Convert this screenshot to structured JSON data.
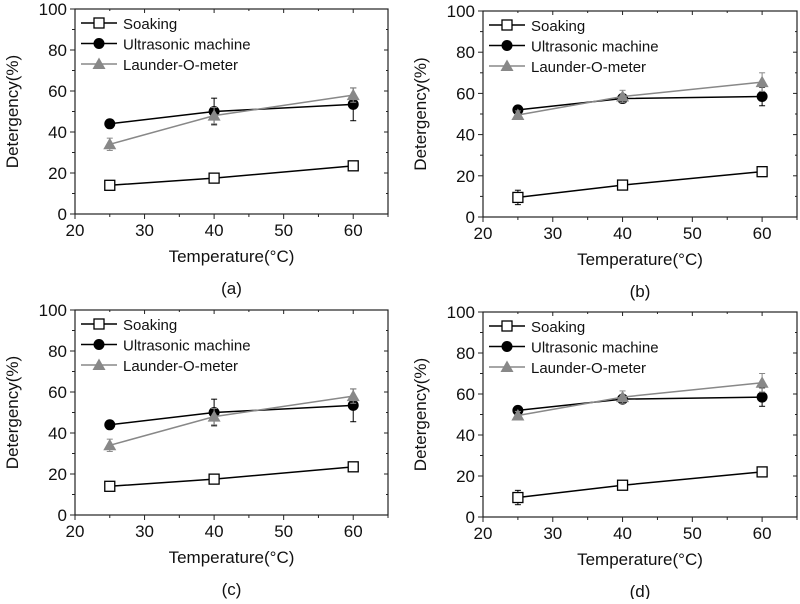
{
  "chart_data": [
    {
      "type": "line",
      "caption": "(a)",
      "xlabel": "Temperature(°C)",
      "ylabel": "Detergency(%)",
      "xlim": [
        20,
        65
      ],
      "ylim": [
        0,
        100
      ],
      "xticks": [
        20,
        30,
        40,
        50,
        60
      ],
      "yticks": [
        0,
        20,
        40,
        60,
        80,
        100
      ],
      "legend_position": "top-left",
      "grid": false,
      "x": [
        25,
        40,
        60
      ],
      "series": [
        {
          "name": "Soaking",
          "values": [
            14,
            17.5,
            23.5
          ],
          "errors": [
            2,
            1,
            1.5
          ],
          "marker": "open-square",
          "color": "#000000"
        },
        {
          "name": "Ultrasonic machine",
          "values": [
            44,
            50,
            53.5
          ],
          "errors": [
            1,
            6.5,
            8
          ],
          "marker": "filled-circle",
          "color": "#000000"
        },
        {
          "name": "Launder-O-meter",
          "values": [
            34,
            48,
            58
          ],
          "errors": [
            3,
            4,
            3.5
          ],
          "marker": "filled-triangle",
          "color": "#888888"
        }
      ]
    },
    {
      "type": "line",
      "caption": "(b)",
      "xlabel": "Temperature(°C)",
      "ylabel": "Detergency(%)",
      "xlim": [
        20,
        65
      ],
      "ylim": [
        0,
        100
      ],
      "xticks": [
        20,
        30,
        40,
        50,
        60
      ],
      "yticks": [
        0,
        20,
        40,
        60,
        80,
        100
      ],
      "legend_position": "top-left",
      "grid": false,
      "x": [
        25,
        40,
        60
      ],
      "series": [
        {
          "name": "Soaking",
          "values": [
            9.5,
            15.5,
            22
          ],
          "errors": [
            3.5,
            1,
            1.5
          ],
          "marker": "open-square",
          "color": "#000000"
        },
        {
          "name": "Ultrasonic machine",
          "values": [
            52,
            57.5,
            58.5
          ],
          "errors": [
            1.5,
            2,
            4.5
          ],
          "marker": "filled-circle",
          "color": "#000000"
        },
        {
          "name": "Launder-O-meter",
          "values": [
            49.5,
            58.5,
            65.5
          ],
          "errors": [
            2,
            3,
            4.5
          ],
          "marker": "filled-triangle",
          "color": "#888888"
        }
      ]
    },
    {
      "type": "line",
      "caption": "(c)",
      "xlabel": "Temperature(°C)",
      "ylabel": "Detergency(%)",
      "xlim": [
        20,
        65
      ],
      "ylim": [
        0,
        100
      ],
      "xticks": [
        20,
        30,
        40,
        50,
        60
      ],
      "yticks": [
        0,
        20,
        40,
        60,
        80,
        100
      ],
      "legend_position": "top-left",
      "grid": false,
      "x": [
        25,
        40,
        60
      ],
      "series": [
        {
          "name": "Soaking",
          "values": [
            14,
            17.5,
            23.5
          ],
          "errors": [
            2,
            1,
            1.5
          ],
          "marker": "open-square",
          "color": "#000000"
        },
        {
          "name": "Ultrasonic machine",
          "values": [
            44,
            50,
            53.5
          ],
          "errors": [
            1,
            6.5,
            8
          ],
          "marker": "filled-circle",
          "color": "#000000"
        },
        {
          "name": "Launder-O-meter",
          "values": [
            34,
            48,
            58
          ],
          "errors": [
            3,
            4,
            3.5
          ],
          "marker": "filled-triangle",
          "color": "#888888"
        }
      ]
    },
    {
      "type": "line",
      "caption": "(d)",
      "xlabel": "Temperature(°C)",
      "ylabel": "Detergency(%)",
      "xlim": [
        20,
        65
      ],
      "ylim": [
        0,
        100
      ],
      "xticks": [
        20,
        30,
        40,
        50,
        60
      ],
      "yticks": [
        0,
        20,
        40,
        60,
        80,
        100
      ],
      "legend_position": "top-left",
      "grid": false,
      "x": [
        25,
        40,
        60
      ],
      "series": [
        {
          "name": "Soaking",
          "values": [
            9.5,
            15.5,
            22
          ],
          "errors": [
            3.5,
            1,
            1.5
          ],
          "marker": "open-square",
          "color": "#000000"
        },
        {
          "name": "Ultrasonic machine",
          "values": [
            52,
            57.5,
            58.5
          ],
          "errors": [
            1.5,
            2,
            4.5
          ],
          "marker": "filled-circle",
          "color": "#000000"
        },
        {
          "name": "Launder-O-meter",
          "values": [
            49.5,
            58.5,
            65.5
          ],
          "errors": [
            2,
            3,
            4.5
          ],
          "marker": "filled-triangle",
          "color": "#888888"
        }
      ]
    }
  ]
}
